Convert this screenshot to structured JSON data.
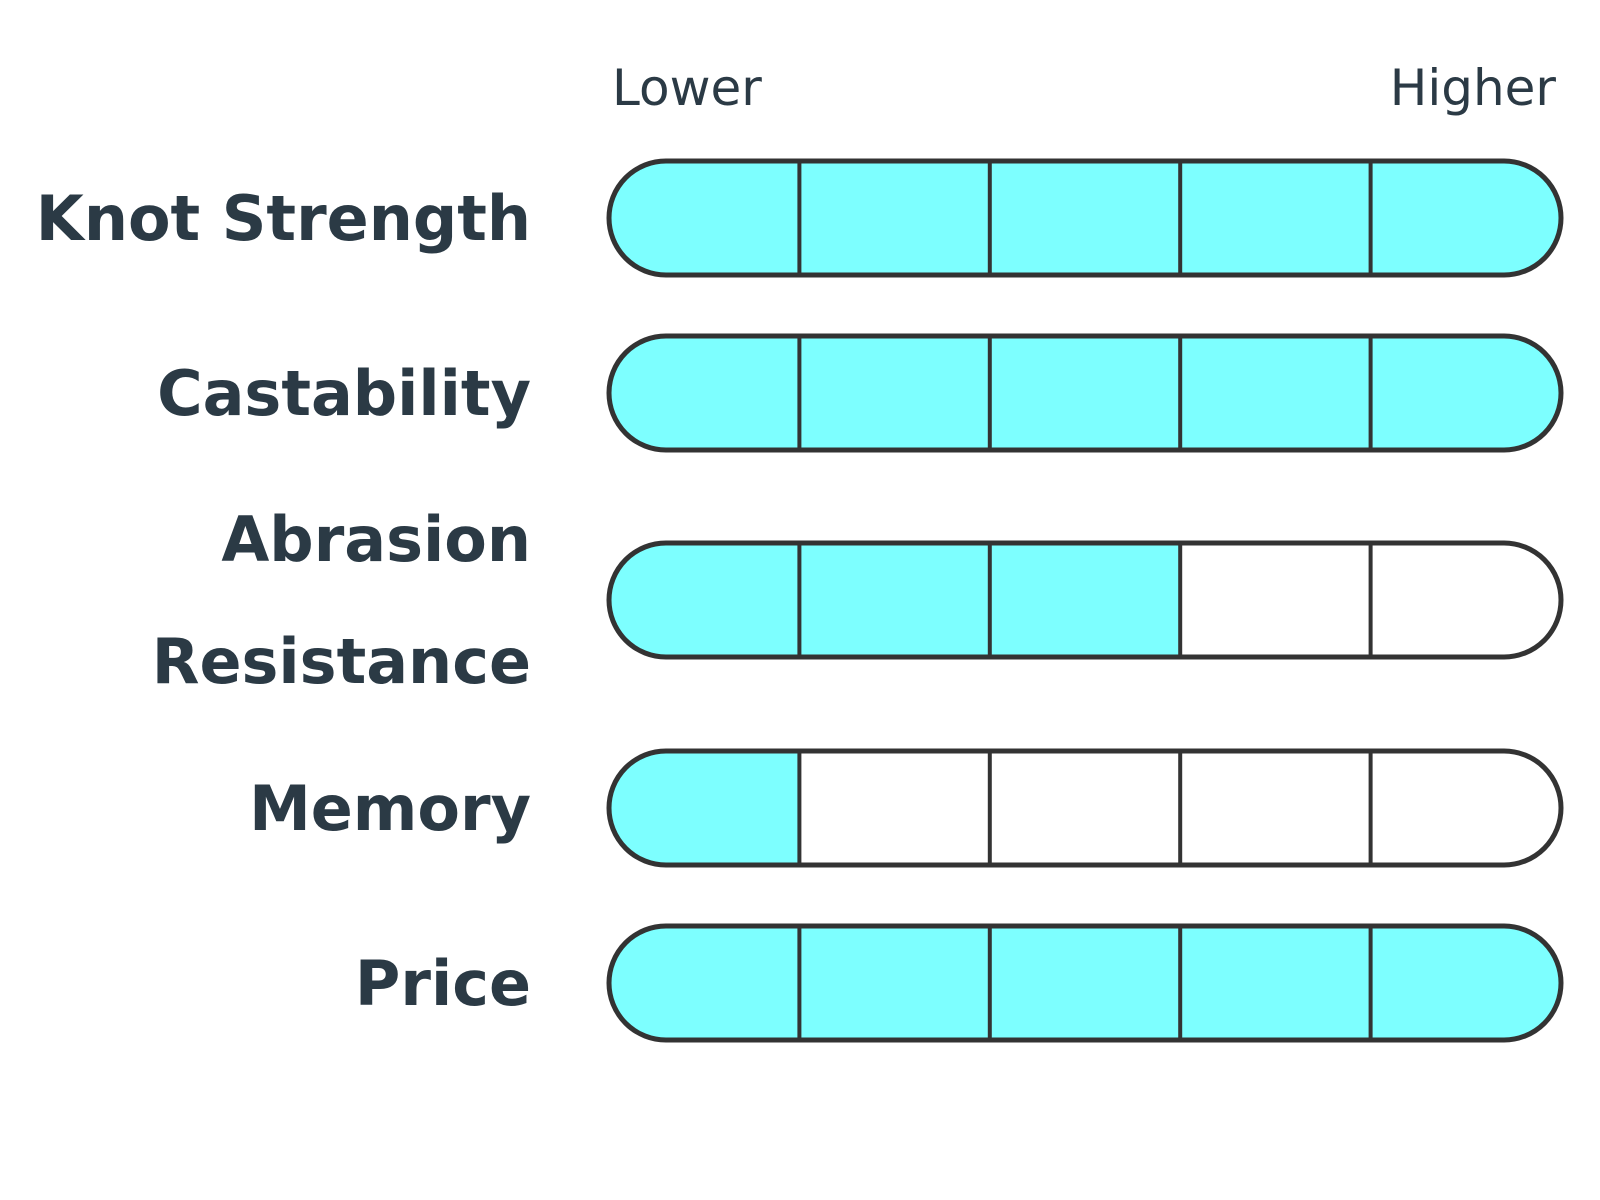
{
  "chart_data": {
    "type": "bar",
    "scale": {
      "low_label": "Lower",
      "high_label": "Higher",
      "max": 5
    },
    "categories": [
      {
        "label_lines": [
          "Knot Strength"
        ],
        "value": 5
      },
      {
        "label_lines": [
          "Castability"
        ],
        "value": 5
      },
      {
        "label_lines": [
          "Abrasion",
          "Resistance"
        ],
        "value": 3
      },
      {
        "label_lines": [
          "Memory"
        ],
        "value": 1
      },
      {
        "label_lines": [
          "Price"
        ],
        "value": 5
      }
    ],
    "colors": {
      "filled": "#7dffff",
      "empty": "#ffffff",
      "outline": "#333333",
      "text": "#2b3a45"
    }
  }
}
